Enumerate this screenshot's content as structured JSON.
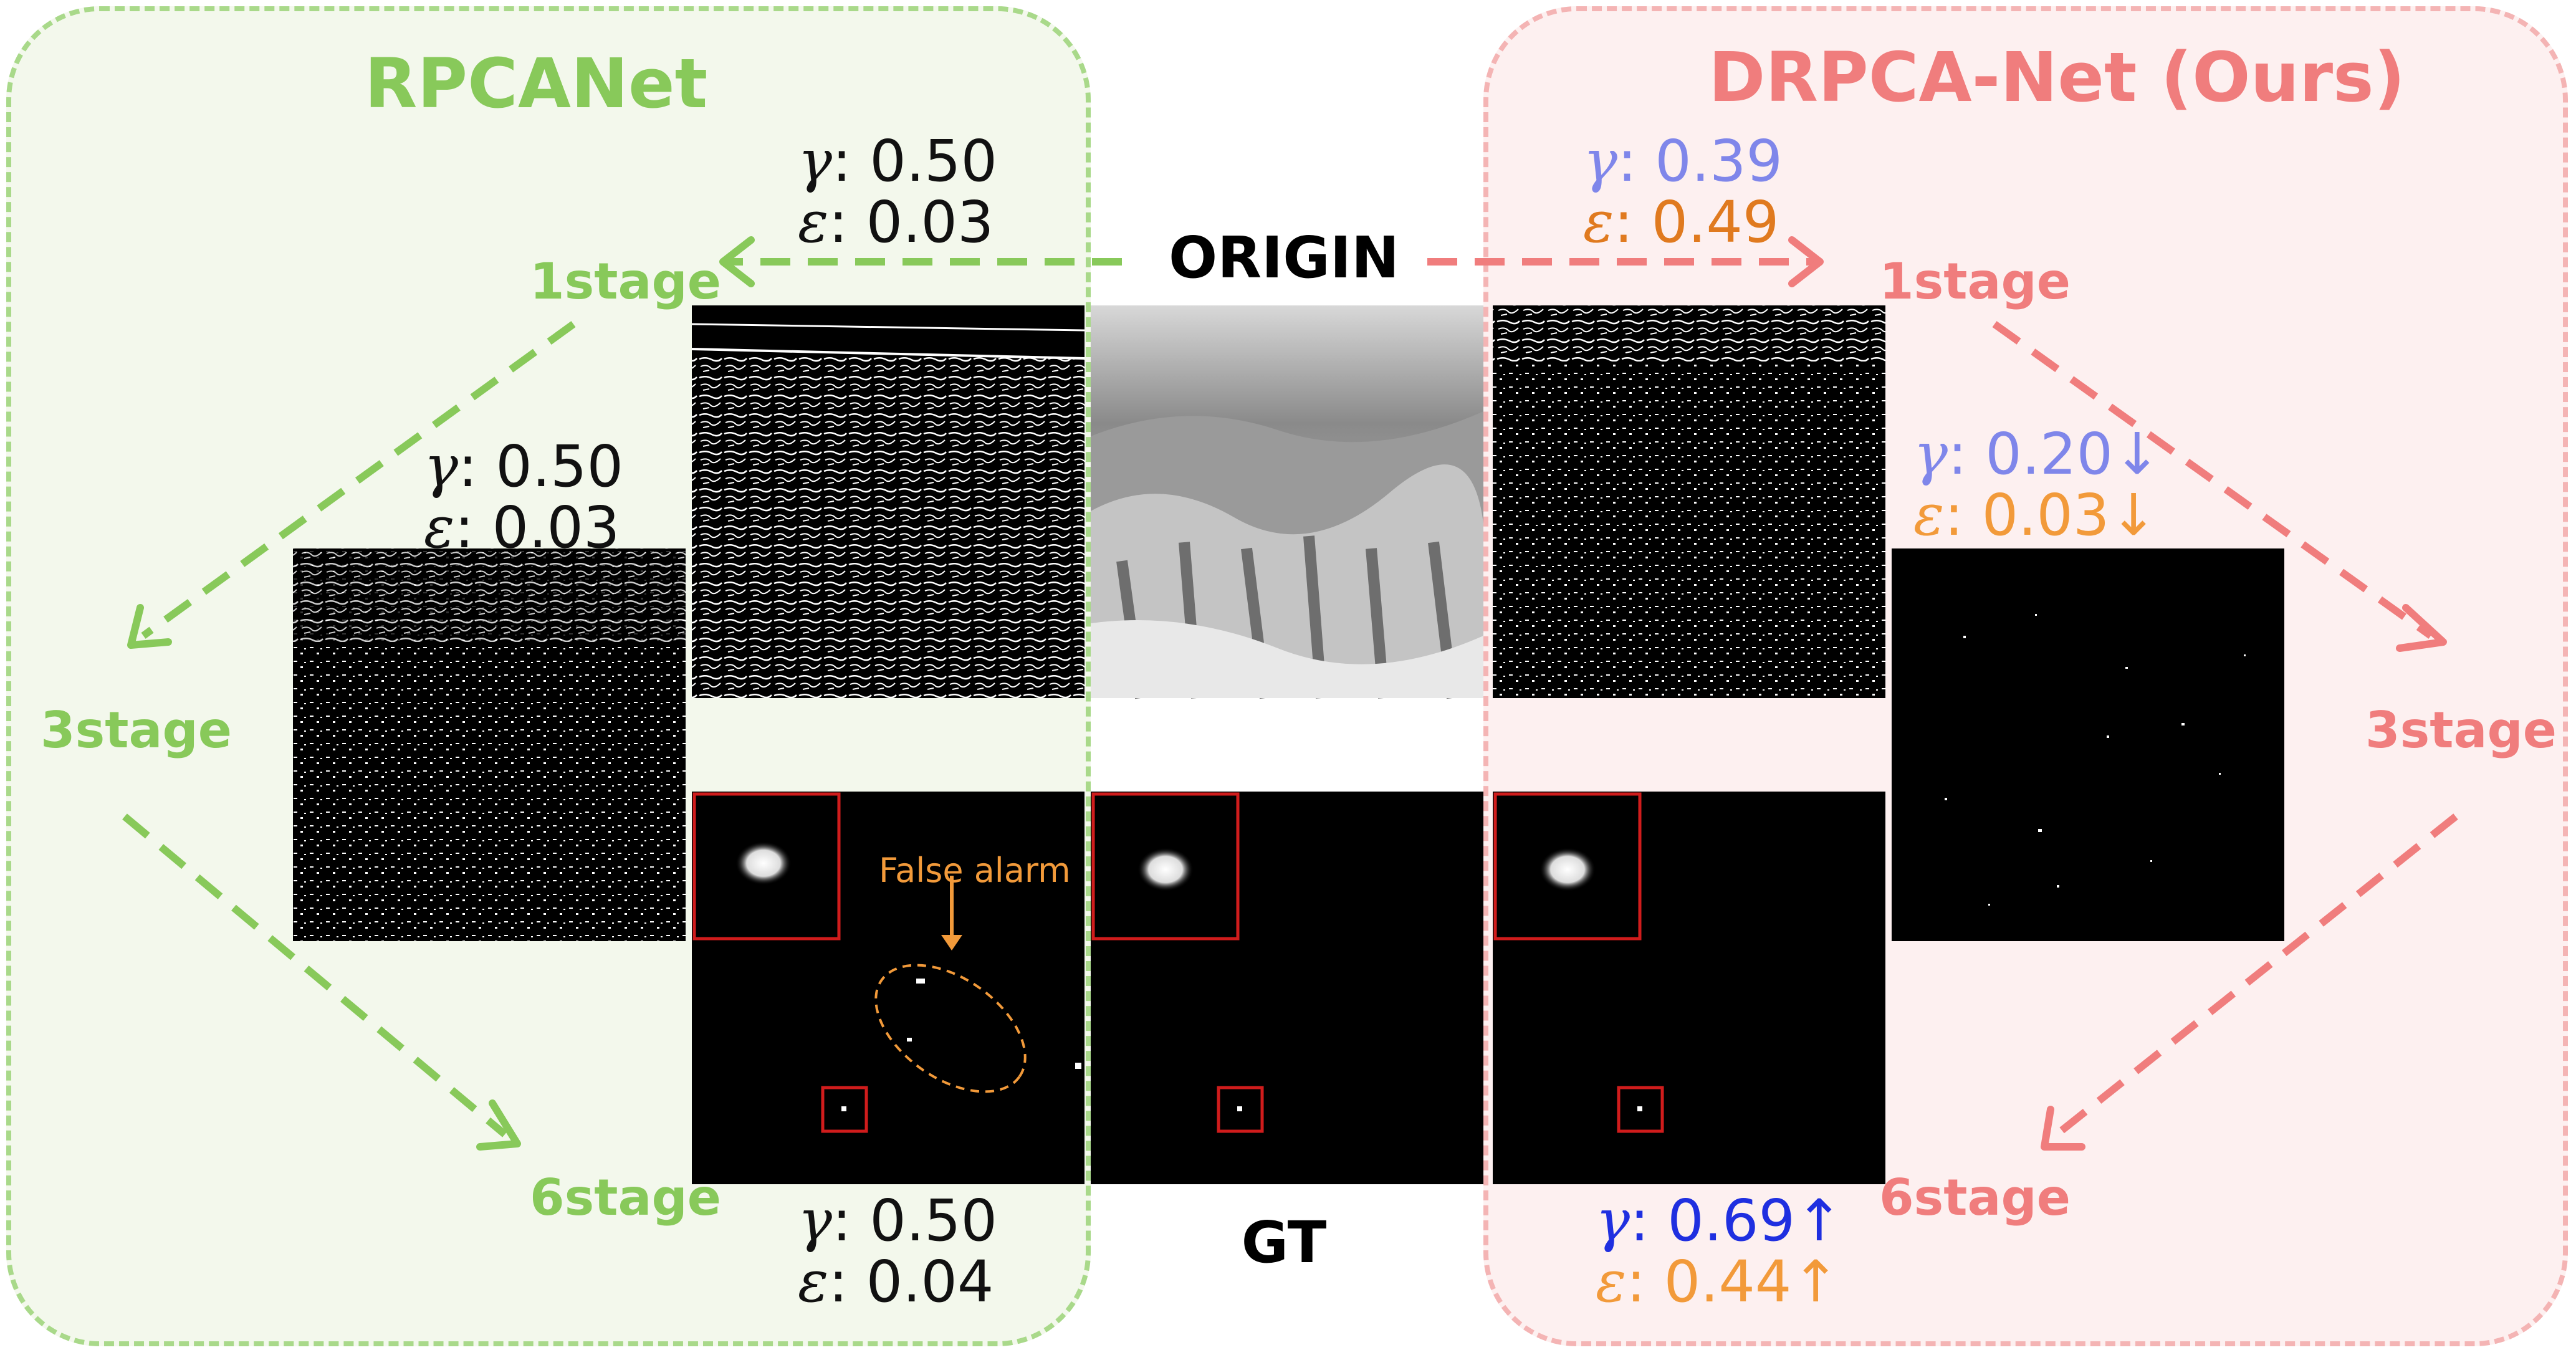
{
  "left_panel": {
    "title": "RPCANet",
    "stages": {
      "s1": "1stage",
      "s3": "3stage",
      "s6": "6stage"
    },
    "params": {
      "s1": {
        "gamma_sym": "γ",
        "gamma": ": 0.50",
        "eps_sym": "ε",
        "eps": ": 0.03"
      },
      "s3": {
        "gamma_sym": "γ",
        "gamma": ": 0.50",
        "eps_sym": "ε",
        "eps": ": 0.03"
      },
      "s6": {
        "gamma_sym": "γ",
        "gamma": ": 0.50",
        "eps_sym": "ε",
        "eps": ": 0.04"
      }
    },
    "annotation": "False alarm"
  },
  "right_panel": {
    "title": "DRPCA-Net (Ours)",
    "stages": {
      "s1": "1stage",
      "s3": "3stage",
      "s6": "6stage"
    },
    "params": {
      "s1": {
        "gamma_sym": "γ",
        "gamma": ": 0.39",
        "eps_sym": "ε",
        "eps": ": 0.49"
      },
      "s3": {
        "gamma_sym": "γ",
        "gamma": ": 0.20",
        "gamma_arrow": "↓",
        "eps_sym": "ε",
        "eps": ": 0.03",
        "eps_arrow": "↓"
      },
      "s6": {
        "gamma_sym": "γ",
        "gamma": ": 0.69",
        "gamma_arrow": "↑",
        "eps_sym": "ε",
        "eps": ": 0.44",
        "eps_arrow": "↑"
      }
    }
  },
  "center": {
    "origin_label": "ORIGIN",
    "gt_label": "GT"
  },
  "colors": {
    "green": "#88c95a",
    "pink": "#f07d7d",
    "gamma_blue_light": "#7f86ea",
    "eps_orange_dark": "#e07a1f",
    "gamma_blue_dark": "#1f2fe0",
    "eps_orange_light": "#f29a3a",
    "box_red": "#d01c1c"
  }
}
